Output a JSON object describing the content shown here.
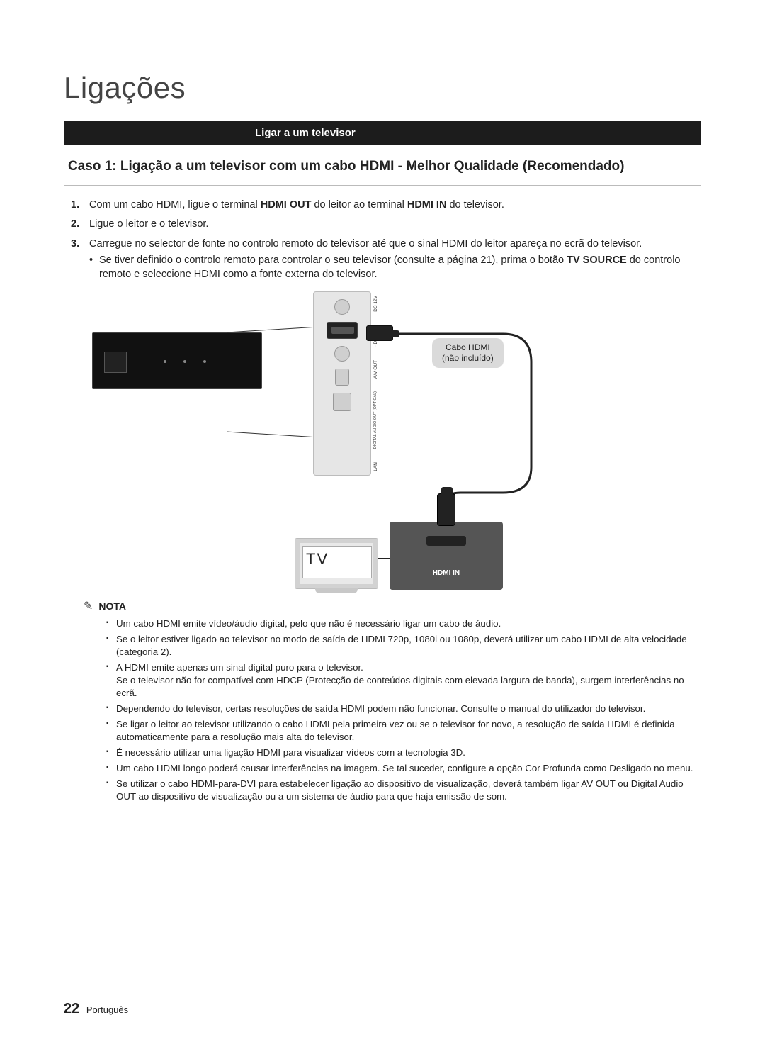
{
  "header": {
    "chapter": "Ligações"
  },
  "section_bar": "Ligar a um televisor",
  "case_title": "Caso 1: Ligação a um televisor com um cabo HDMI - Melhor Qualidade (Recomendado)",
  "steps": [
    {
      "num": "1.",
      "parts": [
        {
          "t": "Com um cabo HDMI, ligue o terminal "
        },
        {
          "t": "HDMI OUT",
          "b": true
        },
        {
          "t": " do leitor ao terminal "
        },
        {
          "t": "HDMI IN",
          "b": true
        },
        {
          "t": " do televisor."
        }
      ]
    },
    {
      "num": "2.",
      "parts": [
        {
          "t": "Ligue o leitor e o televisor."
        }
      ]
    },
    {
      "num": "3.",
      "parts": [
        {
          "t": "Carregue no selector de fonte no controlo remoto do televisor até que o sinal HDMI do leitor apareça no ecrã do televisor."
        }
      ],
      "sub": [
        {
          "t": "Se tiver definido o controlo remoto para controlar o seu televisor (consulte a página 21), prima o botão "
        },
        {
          "t": "TV SOURCE",
          "b": true
        },
        {
          "t": " do controlo remoto e seleccione HDMI como a fonte externa do televisor."
        }
      ]
    }
  ],
  "diagram": {
    "rear_port_labels": [
      "DC 12V",
      "HDMI OUT",
      "A/V OUT",
      "DIGITAL AUDIO OUT (OPTICAL)",
      "LAN"
    ],
    "cable_label_l1": "Cabo HDMI",
    "cable_label_l2": "(não incluído)",
    "tv_label": "TV",
    "hdmi_in_label": "HDMI IN",
    "colors": {
      "page_bg": "#ffffff",
      "bar_bg": "#1c1c1c",
      "bar_text": "#ffffff",
      "panel_bg": "#e6e6e6",
      "label_box_bg": "#dadada",
      "hdmi_box_bg": "#555555",
      "cable_color": "#222222"
    }
  },
  "nota": {
    "heading": "NOTA",
    "items": [
      "Um cabo HDMI emite vídeo/áudio digital, pelo que não é necessário ligar um cabo de áudio.",
      "Se o leitor estiver ligado ao televisor no modo de saída de HDMI 720p, 1080i ou 1080p, deverá utilizar um cabo HDMI de alta velocidade (categoria 2).",
      "A HDMI emite apenas um sinal digital puro para o televisor.\nSe o televisor não for compatível com HDCP (Protecção de conteúdos digitais com elevada largura de banda), surgem interferências no ecrã.",
      "Dependendo do televisor, certas resoluções de saída HDMI podem não funcionar. Consulte o manual do utilizador do televisor.",
      "Se ligar o leitor ao televisor utilizando o cabo HDMI pela primeira vez ou se o televisor for novo, a resolução de saída HDMI é definida automaticamente para a resolução mais alta do televisor.",
      "É necessário utilizar uma ligação HDMI para visualizar vídeos com a tecnologia 3D.",
      "Um cabo HDMI longo poderá causar interferências na imagem. Se tal suceder, configure a opção Cor Profunda como Desligado no menu.",
      "Se utilizar o cabo HDMI-para-DVI para estabelecer ligação ao dispositivo de visualização, deverá também ligar AV OUT ou Digital Audio OUT ao dispositivo de visualização ou a um sistema de áudio para que haja emissão de som."
    ]
  },
  "footer": {
    "page_number": "22",
    "lang": "Português"
  }
}
